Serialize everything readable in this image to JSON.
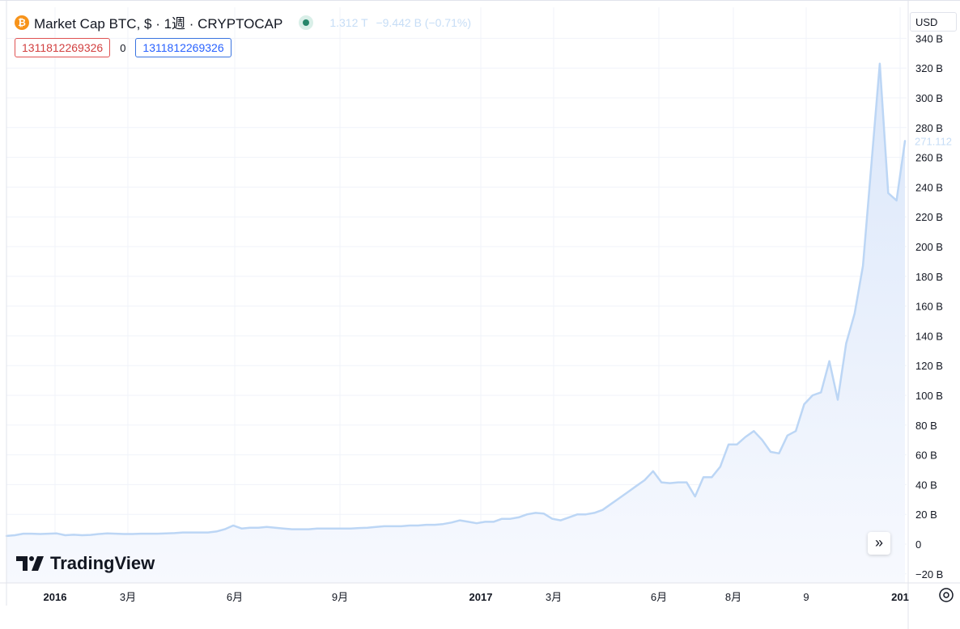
{
  "legend": {
    "symbol_icon": "bitcoin-icon",
    "title": "Market Cap BTC, $ · 1週 · CRYPTOCAP",
    "last_value": "1.312 T",
    "change": "−9.442 B (−0.71%)",
    "status_color": "#26866a"
  },
  "inputs": {
    "left_value": "1311812269326",
    "middle": "0",
    "right_value": "1311812269326"
  },
  "currency": "USD",
  "price_label": "271.112",
  "brand": "TradingView",
  "scroll_icon": "chevron-double-right-icon",
  "settings_icon": "gear-icon",
  "colors": {
    "line": "#bcd6f5",
    "area_top": "#dbe7fa",
    "area_bottom": "#f7f9fe",
    "grid": "#f0f3fa"
  },
  "chart_data": {
    "type": "area",
    "title": "Market Cap BTC, $ · 1週 · CRYPTOCAP",
    "xlabel": "",
    "ylabel": "",
    "unit": "B",
    "grid": true,
    "ylim": [
      -25,
      342
    ],
    "x_ticks": [
      "2016",
      "3月",
      "6月",
      "9月",
      "2017",
      "3月",
      "6月",
      "8月",
      "9",
      "201"
    ],
    "y_ticks": [
      "−20 B",
      "0",
      "20 B",
      "40 B",
      "60 B",
      "80 B",
      "100 B",
      "120 B",
      "140 B",
      "160 B",
      "180 B",
      "200 B",
      "220 B",
      "240 B",
      "260 B",
      "280 B",
      "300 B",
      "320 B",
      "340 B"
    ],
    "y_tick_values": [
      -20,
      0,
      20,
      40,
      60,
      80,
      100,
      120,
      140,
      160,
      180,
      200,
      220,
      240,
      260,
      280,
      300,
      320,
      340
    ],
    "series": [
      {
        "values": [
          5.5,
          6,
          7,
          7,
          6.8,
          7,
          7.2,
          6,
          6.3,
          6,
          6.2,
          6.8,
          7.2,
          7,
          6.8,
          6.8,
          7,
          7,
          7,
          7.2,
          7.4,
          7.8,
          7.8,
          7.8,
          7.8,
          8.5,
          10,
          12.5,
          10.5,
          11,
          11,
          11.5,
          11,
          10.5,
          10,
          10,
          10,
          10.5,
          10.5,
          10.5,
          10.5,
          10.5,
          10.8,
          11,
          11.5,
          12,
          12,
          12,
          12.5,
          12.5,
          13,
          13,
          13.5,
          14.5,
          16,
          15,
          14,
          15,
          15,
          17,
          17,
          18,
          20,
          21,
          20.5,
          17,
          16,
          18,
          20,
          20,
          21,
          23,
          27,
          31,
          35,
          39,
          43,
          49,
          41.5,
          41,
          41.5,
          41.5,
          32,
          45,
          45,
          52,
          67,
          67,
          72,
          76,
          70,
          62,
          61,
          73,
          76,
          94,
          100,
          102,
          123,
          97,
          135,
          155,
          187,
          255,
          323,
          236,
          231,
          271
        ]
      }
    ]
  }
}
